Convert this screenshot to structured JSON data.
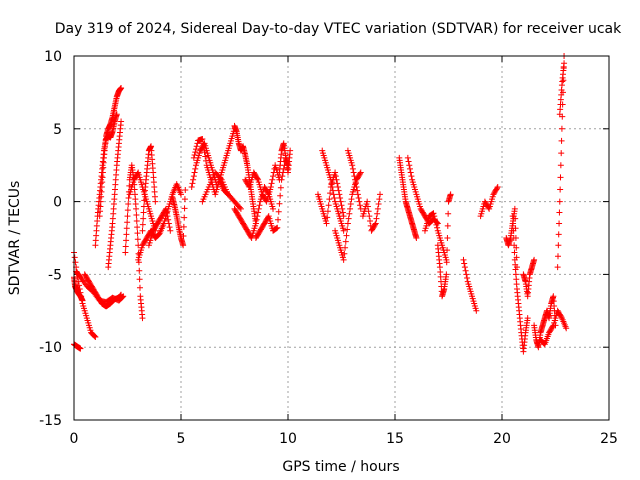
{
  "chart_data": {
    "type": "scatter",
    "title": "Day 319 of 2024, Sidereal Day-to-day VTEC variation (SDTVAR) for receiver ucak",
    "xlabel": "GPS time / hours",
    "ylabel": "SDTVAR / TECUs",
    "xlim": [
      0,
      25
    ],
    "ylim": [
      -15,
      10
    ],
    "xticks": [
      0,
      5,
      10,
      15,
      20,
      25
    ],
    "yticks": [
      -15,
      -10,
      -5,
      0,
      5,
      10
    ],
    "grid": true,
    "marker": "+",
    "marker_color": "#ff0000",
    "series": [
      {
        "name": "SDTVAR",
        "segments": [
          {
            "x": [
              0.0,
              0.2,
              0.4,
              0.6,
              0.8,
              1.0
            ],
            "y": [
              -3.5,
              -5.5,
              -7.0,
              -8.0,
              -9.0,
              -9.3
            ]
          },
          {
            "x": [
              0.0,
              0.05,
              0.1,
              0.2,
              0.3,
              0.4
            ],
            "y": [
              -5.2,
              -5.8,
              -6.0,
              -6.3,
              -6.5,
              -6.8
            ]
          },
          {
            "x": [
              0.0,
              0.1,
              0.2,
              0.3
            ],
            "y": [
              -9.8,
              -9.9,
              -10.0,
              -10.1
            ]
          },
          {
            "x": [
              0.1,
              0.3,
              0.6,
              0.9,
              1.2,
              1.5,
              1.8,
              2.1,
              2.3
            ],
            "y": [
              -4.8,
              -5.2,
              -5.8,
              -6.2,
              -6.8,
              -6.9,
              -6.6,
              -6.8,
              -6.5
            ]
          },
          {
            "x": [
              0.5,
              0.7,
              0.9,
              1.1,
              1.3,
              1.5,
              1.7,
              1.9,
              2.1,
              2.2
            ],
            "y": [
              -5.0,
              -5.5,
              -6.0,
              -6.5,
              -7.0,
              -7.2,
              -7.0,
              -6.7,
              -6.6,
              -6.4
            ]
          },
          {
            "x": [
              1.2,
              1.3,
              1.4,
              1.5,
              1.6,
              1.7,
              1.8,
              1.9,
              2.0,
              2.1,
              2.2
            ],
            "y": [
              -1.0,
              1.0,
              3.0,
              4.5,
              5.0,
              5.3,
              5.8,
              6.5,
              7.2,
              7.6,
              7.8
            ]
          },
          {
            "x": [
              1.0,
              1.1,
              1.2,
              1.3,
              1.4,
              1.5,
              1.6,
              1.7,
              1.8,
              1.9,
              2.0
            ],
            "y": [
              -3.0,
              -1.0,
              0.5,
              2.0,
              3.5,
              4.3,
              4.5,
              4.4,
              4.8,
              5.5,
              6.0
            ]
          },
          {
            "x": [
              1.6,
              1.7,
              1.8,
              1.9,
              2.0,
              2.1,
              2.2
            ],
            "y": [
              -4.5,
              -3.0,
              -1.5,
              0.5,
              2.5,
              4.0,
              5.5
            ]
          },
          {
            "x": [
              2.4,
              2.5,
              2.6,
              2.7,
              2.8,
              2.9,
              3.0,
              3.1,
              3.2
            ],
            "y": [
              -3.5,
              -1.0,
              1.5,
              2.5,
              1.5,
              -0.5,
              -3.0,
              -6.5,
              -8.0
            ]
          },
          {
            "x": [
              2.6,
              2.8,
              3.0,
              3.2,
              3.4,
              3.6,
              3.8
            ],
            "y": [
              0.5,
              1.5,
              2.0,
              1.0,
              0.0,
              -1.0,
              -2.0
            ]
          },
          {
            "x": [
              3.0,
              3.2,
              3.4,
              3.6,
              3.8,
              4.0,
              4.2,
              4.4,
              4.6,
              4.8,
              5.0
            ],
            "y": [
              -4.0,
              -3.0,
              -2.5,
              -2.0,
              -2.5,
              -2.2,
              -1.5,
              -0.5,
              0.5,
              1.2,
              0.5
            ]
          },
          {
            "x": [
              3.2,
              3.3,
              3.4,
              3.5,
              3.6,
              3.7,
              3.8
            ],
            "y": [
              -2.0,
              0.5,
              2.0,
              3.5,
              3.8,
              2.0,
              0.0
            ]
          },
          {
            "x": [
              3.5,
              3.7,
              3.9,
              4.1,
              4.3,
              4.5
            ],
            "y": [
              -3.0,
              -2.0,
              -1.5,
              -1.0,
              -0.5,
              -2.0
            ]
          },
          {
            "x": [
              4.6,
              4.7,
              4.8,
              4.9,
              5.0,
              5.1,
              5.2
            ],
            "y": [
              0.3,
              -0.3,
              -1.0,
              -1.8,
              -2.5,
              -3.0,
              0.8
            ]
          },
          {
            "x": [
              5.5,
              5.7,
              5.9,
              6.1,
              6.3,
              6.5,
              6.7,
              6.9,
              7.1,
              7.3,
              7.5
            ],
            "y": [
              1.0,
              2.5,
              3.5,
              4.0,
              3.0,
              2.0,
              1.0,
              2.0,
              3.0,
              4.0,
              5.0
            ]
          },
          {
            "x": [
              5.6,
              5.8,
              6.0,
              6.2,
              6.4,
              6.6,
              6.8,
              7.0,
              7.2
            ],
            "y": [
              3.0,
              4.2,
              4.3,
              2.5,
              1.5,
              0.5,
              1.5,
              0.8,
              0.5
            ]
          },
          {
            "x": [
              6.0,
              6.3,
              6.6,
              6.9,
              7.2,
              7.5,
              7.8
            ],
            "y": [
              0.0,
              1.0,
              2.0,
              1.5,
              0.5,
              0.0,
              -0.5
            ]
          },
          {
            "x": [
              7.5,
              7.6,
              7.7,
              7.8,
              7.9,
              8.0,
              8.1,
              8.2,
              8.3,
              8.4,
              8.5
            ],
            "y": [
              5.2,
              4.8,
              4.0,
              3.5,
              3.8,
              3.2,
              2.5,
              1.5,
              0.5,
              -0.5,
              -1.5
            ]
          },
          {
            "x": [
              7.5,
              7.7,
              7.9,
              8.1,
              8.3,
              8.5,
              8.7,
              8.9,
              9.1,
              9.3
            ],
            "y": [
              -0.5,
              -1.0,
              -1.5,
              -2.0,
              -2.5,
              -1.5,
              0.0,
              1.0,
              0.5,
              -0.5
            ]
          },
          {
            "x": [
              8.0,
              8.2,
              8.4,
              8.6,
              8.8,
              9.0,
              9.2,
              9.4,
              9.6
            ],
            "y": [
              1.5,
              1.0,
              2.0,
              1.5,
              0.5,
              0.0,
              1.0,
              2.5,
              1.5
            ]
          },
          {
            "x": [
              8.5,
              8.7,
              8.9,
              9.1,
              9.3,
              9.5,
              9.7,
              9.9,
              10.0
            ],
            "y": [
              -2.5,
              -2.0,
              -1.5,
              -1.0,
              -2.0,
              -1.8,
              1.5,
              3.0,
              2.5
            ]
          },
          {
            "x": [
              9.6,
              9.7,
              9.8,
              9.9,
              10.0,
              10.1
            ],
            "y": [
              2.0,
              3.5,
              4.0,
              3.0,
              2.0,
              3.5
            ]
          },
          {
            "x": [
              11.4,
              11.6,
              11.8,
              12.0,
              12.2,
              12.4,
              12.6
            ],
            "y": [
              0.5,
              -0.5,
              -1.5,
              1.0,
              2.0,
              0.5,
              -1.0
            ]
          },
          {
            "x": [
              11.6,
              11.8,
              12.0,
              12.2,
              12.4,
              12.6
            ],
            "y": [
              3.5,
              2.5,
              1.5,
              0.0,
              -1.0,
              -2.0
            ]
          },
          {
            "x": [
              12.2,
              12.4,
              12.6,
              12.8,
              13.0,
              13.2,
              13.4
            ],
            "y": [
              -2.0,
              -3.0,
              -4.0,
              -1.5,
              0.5,
              1.5,
              2.0
            ]
          },
          {
            "x": [
              12.8,
              13.0,
              13.2,
              13.4
            ],
            "y": [
              3.5,
              2.5,
              1.0,
              -0.5
            ]
          },
          {
            "x": [
              13.5,
              13.7,
              13.9,
              14.1,
              14.3
            ],
            "y": [
              -1.0,
              0.0,
              -2.0,
              -1.5,
              0.5
            ]
          },
          {
            "x": [
              15.2,
              15.3,
              15.4,
              15.5,
              15.6,
              15.7,
              15.8,
              15.9,
              16.0
            ],
            "y": [
              3.0,
              2.0,
              1.0,
              0.0,
              -0.5,
              -1.0,
              -1.5,
              -2.0,
              -2.5
            ]
          },
          {
            "x": [
              15.6,
              15.8,
              16.0,
              16.2,
              16.4,
              16.6,
              16.8,
              17.0
            ],
            "y": [
              3.0,
              1.5,
              0.5,
              -0.5,
              -1.0,
              -1.5,
              -1.2,
              -1.5
            ]
          },
          {
            "x": [
              16.4,
              16.6,
              16.8,
              17.0,
              17.2,
              17.4
            ],
            "y": [
              -2.0,
              -1.0,
              -0.8,
              -2.0,
              -3.0,
              -4.0
            ]
          },
          {
            "x": [
              17.0,
              17.1,
              17.2,
              17.3,
              17.4,
              17.5,
              17.6
            ],
            "y": [
              -3.0,
              -4.5,
              -6.5,
              -6.0,
              -5.0,
              0.0,
              0.5
            ]
          },
          {
            "x": [
              18.2,
              18.4,
              18.6,
              18.8
            ],
            "y": [
              -4.0,
              -5.5,
              -6.5,
              -7.5
            ]
          },
          {
            "x": [
              19.0,
              19.2,
              19.4,
              19.6,
              19.8
            ],
            "y": [
              -1.0,
              0.0,
              -0.5,
              0.5,
              1.0
            ]
          },
          {
            "x": [
              20.2,
              20.3,
              20.4,
              20.5,
              20.6,
              20.7
            ],
            "y": [
              -2.5,
              -3.0,
              -2.5,
              -1.5,
              -0.5,
              -4.5
            ]
          },
          {
            "x": [
              20.5,
              20.6,
              20.7,
              20.8,
              20.9,
              21.0,
              21.1,
              21.2
            ],
            "y": [
              -1.0,
              -4.0,
              -6.0,
              -7.5,
              -9.0,
              -10.3,
              -9.0,
              -8.0
            ]
          },
          {
            "x": [
              21.0,
              21.1,
              21.2,
              21.3,
              21.4,
              21.5
            ],
            "y": [
              -5.0,
              -5.5,
              -6.5,
              -5.0,
              -4.5,
              -4.0
            ]
          },
          {
            "x": [
              21.5,
              21.6,
              21.7,
              21.8,
              21.9,
              22.0,
              22.1,
              22.2,
              22.3,
              22.4,
              22.5
            ],
            "y": [
              -8.5,
              -9.5,
              -10.0,
              -9.0,
              -8.5,
              -8.0,
              -7.5,
              -8.0,
              -7.0,
              -6.5,
              -8.5
            ]
          },
          {
            "x": [
              21.8,
              22.0,
              22.2,
              22.4,
              22.6,
              22.8,
              23.0
            ],
            "y": [
              -9.5,
              -9.8,
              -9.0,
              -8.5,
              -7.5,
              -8.0,
              -8.7
            ]
          },
          {
            "x": [
              22.6,
              22.7,
              22.8,
              22.9
            ],
            "y": [
              -4.5,
              0.0,
              5.0,
              10.0
            ]
          },
          {
            "x": [
              22.7,
              22.8,
              22.9
            ],
            "y": [
              6.0,
              8.0,
              9.5
            ]
          }
        ]
      }
    ]
  }
}
